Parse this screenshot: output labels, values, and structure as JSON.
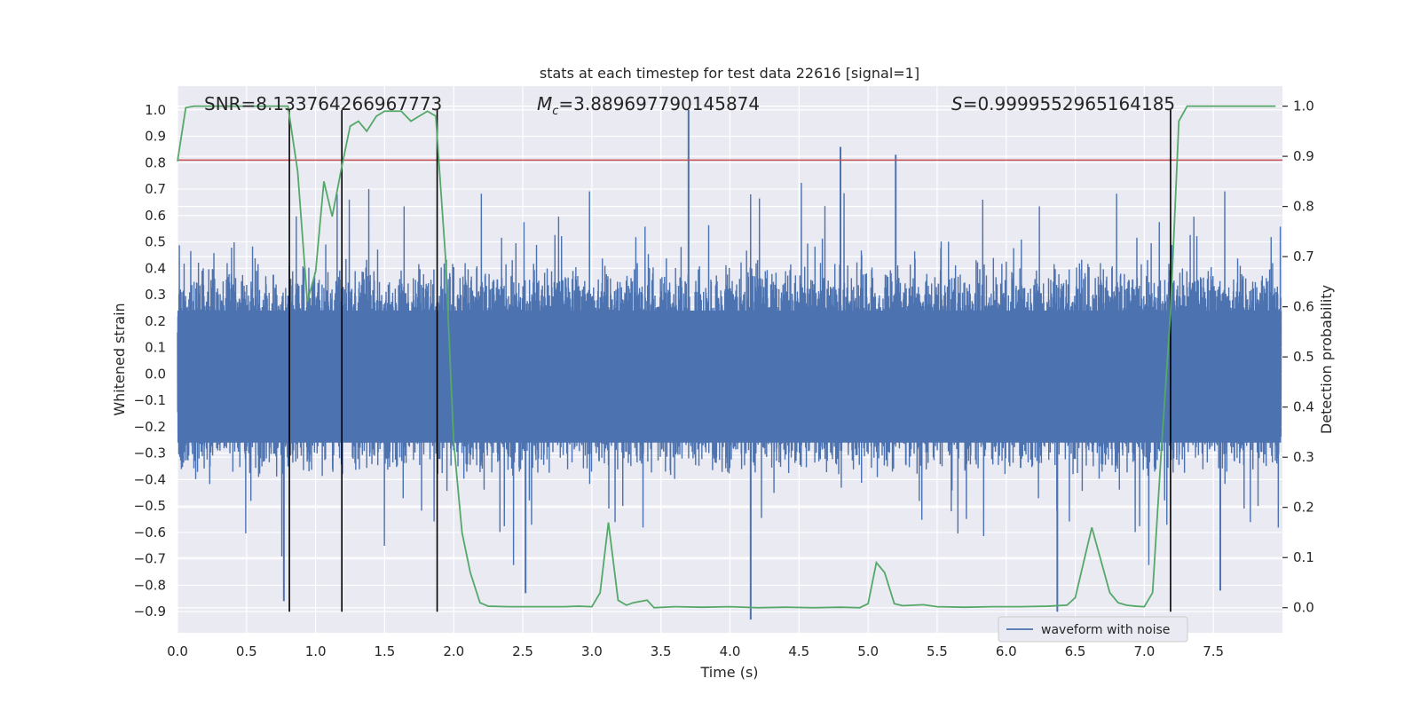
{
  "chart_data": {
    "type": "line",
    "title": "stats at each timestep for test data 22616 [signal=1]",
    "xlabel": "Time (s)",
    "ylabel_left": "Whitened strain",
    "ylabel_right": "Detection probability",
    "xlim": [
      0.0,
      8.0
    ],
    "ylim_left": [
      -0.98,
      1.09
    ],
    "ylim_right": [
      -0.05,
      1.04
    ],
    "x_ticks": [
      "0.0",
      "0.5",
      "1.0",
      "1.5",
      "2.0",
      "2.5",
      "3.0",
      "3.5",
      "4.0",
      "4.5",
      "5.0",
      "5.5",
      "6.0",
      "6.5",
      "7.0",
      "7.5"
    ],
    "y_ticks_left": [
      "1.0",
      "0.9",
      "0.8",
      "0.7",
      "0.6",
      "0.5",
      "0.4",
      "0.3",
      "0.2",
      "0.1",
      "0.0",
      "−0.1",
      "−0.2",
      "−0.3",
      "−0.4",
      "−0.5",
      "−0.6",
      "−0.7",
      "−0.8",
      "−0.9"
    ],
    "y_ticks_right": [
      "1.0",
      "0.9",
      "0.8",
      "0.7",
      "0.6",
      "0.5",
      "0.4",
      "0.3",
      "0.2",
      "0.1",
      "0.0"
    ],
    "annotations": {
      "snr": "SNR=8.133764266967773",
      "mc_symbol": "M",
      "mc_sub": "c",
      "mc_value": "=3.889697790145874",
      "s_symbol": "S",
      "s_value": "=0.9999552965164185"
    },
    "legend": {
      "label": "waveform with noise",
      "position": "lower-right"
    },
    "threshold_left": 0.81,
    "vertical_markers_s": [
      0.81,
      1.19,
      1.88,
      7.19
    ],
    "series": [
      {
        "name": "waveform with noise",
        "color": "#4c72b0",
        "axis": "left",
        "envelope": "dense noise, typical |amplitude| 0.25-0.45, peaks up to 1.0",
        "notable_peaks": [
          {
            "x": 0.77,
            "y": -0.86
          },
          {
            "x": 2.52,
            "y": -0.83
          },
          {
            "x": 3.7,
            "y": 1.0
          },
          {
            "x": 4.15,
            "y": -0.93
          },
          {
            "x": 4.8,
            "y": 0.86
          },
          {
            "x": 5.2,
            "y": 0.83
          },
          {
            "x": 6.37,
            "y": -0.9
          },
          {
            "x": 7.55,
            "y": -0.82
          }
        ]
      },
      {
        "name": "detection probability",
        "color": "#55a868",
        "axis": "right",
        "x": [
          0.0,
          0.06,
          0.12,
          0.2,
          0.3,
          0.4,
          0.5,
          0.6,
          0.7,
          0.8,
          0.87,
          0.94,
          1.0,
          1.06,
          1.12,
          1.19,
          1.25,
          1.31,
          1.37,
          1.44,
          1.5,
          1.56,
          1.62,
          1.69,
          1.75,
          1.81,
          1.87,
          1.94,
          2.0,
          2.06,
          2.12,
          2.19,
          2.25,
          2.4,
          2.6,
          2.8,
          2.9,
          3.0,
          3.06,
          3.12,
          3.19,
          3.25,
          3.3,
          3.4,
          3.45,
          3.6,
          3.8,
          4.0,
          4.2,
          4.4,
          4.6,
          4.8,
          4.94,
          5.0,
          5.06,
          5.12,
          5.19,
          5.25,
          5.4,
          5.5,
          5.7,
          5.9,
          6.1,
          6.3,
          6.44,
          6.5,
          6.56,
          6.62,
          6.69,
          6.75,
          6.81,
          6.87,
          6.94,
          7.0,
          7.06,
          7.12,
          7.19,
          7.25,
          7.31,
          7.37,
          7.5,
          7.7,
          7.95
        ],
        "values": [
          0.89,
          0.997,
          1.0,
          1.0,
          1.0,
          1.0,
          1.0,
          1.0,
          1.0,
          1.0,
          0.87,
          0.61,
          0.67,
          0.85,
          0.78,
          0.88,
          0.96,
          0.97,
          0.95,
          0.98,
          0.99,
          0.99,
          0.99,
          0.97,
          0.98,
          0.99,
          0.98,
          0.7,
          0.33,
          0.15,
          0.07,
          0.01,
          0.003,
          0.002,
          0.002,
          0.002,
          0.003,
          0.002,
          0.03,
          0.17,
          0.015,
          0.005,
          0.01,
          0.015,
          0.0,
          0.002,
          0.001,
          0.002,
          0.0,
          0.001,
          0.0,
          0.001,
          0.0,
          0.008,
          0.09,
          0.07,
          0.008,
          0.004,
          0.006,
          0.002,
          0.001,
          0.002,
          0.002,
          0.003,
          0.005,
          0.02,
          0.09,
          0.16,
          0.09,
          0.03,
          0.01,
          0.005,
          0.003,
          0.002,
          0.03,
          0.3,
          0.59,
          0.97,
          1.0,
          1.0,
          1.0,
          1.0,
          1.0
        ]
      }
    ]
  }
}
